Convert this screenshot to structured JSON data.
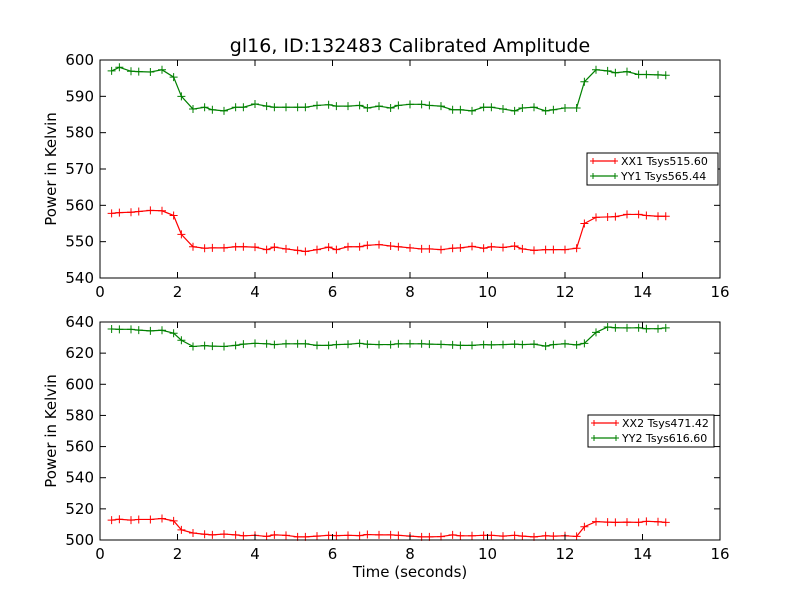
{
  "chart_data": [
    {
      "type": "line",
      "title": "gl16, ID:132483 Calibrated Amplitude",
      "xlabel": "",
      "ylabel": "Power in Kelvin",
      "xlim": [
        0,
        16
      ],
      "ylim": [
        540,
        600
      ],
      "xticks": [
        0,
        2,
        4,
        6,
        8,
        10,
        12,
        14,
        16
      ],
      "yticks": [
        540,
        550,
        560,
        570,
        580,
        590,
        600
      ],
      "legend_position": "center-right",
      "grid": false,
      "x": [
        0.3,
        0.5,
        0.8,
        1.0,
        1.3,
        1.6,
        1.9,
        2.1,
        2.4,
        2.7,
        2.9,
        3.2,
        3.5,
        3.7,
        4.0,
        4.3,
        4.5,
        4.8,
        5.1,
        5.3,
        5.6,
        5.9,
        6.1,
        6.4,
        6.7,
        6.9,
        7.2,
        7.5,
        7.7,
        8.0,
        8.3,
        8.5,
        8.8,
        9.1,
        9.3,
        9.6,
        9.9,
        10.1,
        10.4,
        10.7,
        10.9,
        11.2,
        11.5,
        11.7,
        12.0,
        12.3,
        12.5,
        12.8,
        13.1,
        13.3,
        13.6,
        13.9,
        14.1,
        14.4,
        14.6
      ],
      "series": [
        {
          "name": "XX1 Tsys515.60",
          "color": "#ff0000",
          "values": [
            557.8,
            558.0,
            558.1,
            558.3,
            558.6,
            558.5,
            557.2,
            552.0,
            548.6,
            548.2,
            548.3,
            548.3,
            548.6,
            548.6,
            548.5,
            547.8,
            548.5,
            548.0,
            547.6,
            547.3,
            547.8,
            548.5,
            547.8,
            548.6,
            548.6,
            549.0,
            549.2,
            548.8,
            548.6,
            548.3,
            548.0,
            548.0,
            547.8,
            548.2,
            548.3,
            548.7,
            548.2,
            548.6,
            548.4,
            548.8,
            548.0,
            547.6,
            547.8,
            547.8,
            547.8,
            548.2,
            555.0,
            556.7,
            556.8,
            556.9,
            557.5,
            557.5,
            557.2,
            557.0,
            557.0
          ],
          "markers": "plus"
        },
        {
          "name": "YY1 Tsys565.44",
          "color": "#008000",
          "values": [
            597.0,
            598.0,
            596.9,
            596.8,
            596.7,
            597.3,
            595.3,
            590.0,
            586.5,
            587.0,
            586.3,
            586.0,
            587.0,
            587.0,
            587.9,
            587.3,
            587.0,
            587.0,
            587.0,
            587.0,
            587.5,
            587.7,
            587.3,
            587.3,
            587.5,
            586.8,
            587.3,
            586.8,
            587.5,
            587.8,
            587.8,
            587.5,
            587.3,
            586.3,
            586.3,
            586.0,
            587.0,
            587.0,
            586.5,
            586.0,
            586.8,
            587.0,
            586.0,
            586.3,
            586.8,
            586.8,
            594.0,
            597.3,
            597.0,
            596.5,
            596.8,
            596.0,
            596.0,
            595.9,
            595.8
          ],
          "markers": "plus"
        }
      ]
    },
    {
      "type": "line",
      "title": "",
      "xlabel": "Time (seconds)",
      "ylabel": "Power in Kelvin",
      "xlim": [
        0,
        16
      ],
      "ylim": [
        500,
        640
      ],
      "xticks": [
        0,
        2,
        4,
        6,
        8,
        10,
        12,
        14,
        16
      ],
      "yticks": [
        500,
        520,
        540,
        560,
        580,
        600,
        620,
        640
      ],
      "legend_position": "center-right",
      "grid": false,
      "x": [
        0.3,
        0.5,
        0.8,
        1.0,
        1.3,
        1.6,
        1.9,
        2.1,
        2.4,
        2.7,
        2.9,
        3.2,
        3.5,
        3.7,
        4.0,
        4.3,
        4.5,
        4.8,
        5.1,
        5.3,
        5.6,
        5.9,
        6.1,
        6.4,
        6.7,
        6.9,
        7.2,
        7.5,
        7.7,
        8.0,
        8.3,
        8.5,
        8.8,
        9.1,
        9.3,
        9.6,
        9.9,
        10.1,
        10.4,
        10.7,
        10.9,
        11.2,
        11.5,
        11.7,
        12.0,
        12.3,
        12.5,
        12.8,
        13.1,
        13.3,
        13.6,
        13.9,
        14.1,
        14.4,
        14.6
      ],
      "series": [
        {
          "name": "XX2 Tsys471.42",
          "color": "#ff0000",
          "values": [
            512.8,
            513.3,
            512.8,
            513.2,
            513.2,
            513.8,
            512.3,
            506.5,
            504.5,
            503.7,
            503.3,
            503.8,
            503.3,
            502.7,
            503.0,
            502.3,
            503.3,
            503.0,
            502.0,
            502.0,
            502.5,
            503.0,
            502.8,
            503.0,
            502.8,
            503.5,
            503.3,
            503.3,
            503.0,
            502.5,
            502.0,
            502.0,
            502.2,
            503.3,
            502.7,
            502.7,
            503.0,
            503.0,
            502.5,
            503.0,
            502.5,
            502.0,
            502.7,
            502.5,
            502.7,
            502.3,
            508.5,
            511.8,
            511.5,
            511.3,
            511.5,
            511.3,
            512.0,
            511.7,
            511.3
          ],
          "markers": "plus"
        },
        {
          "name": "YY2 Tsys616.60",
          "color": "#008000",
          "values": [
            635.5,
            635.3,
            635.3,
            634.8,
            634.3,
            634.7,
            632.8,
            628.3,
            624.3,
            624.8,
            624.5,
            624.3,
            625.0,
            625.8,
            626.3,
            626.0,
            625.5,
            626.0,
            626.0,
            626.0,
            625.0,
            625.0,
            625.5,
            625.7,
            626.3,
            625.7,
            625.5,
            625.5,
            626.0,
            626.0,
            626.0,
            625.8,
            625.6,
            625.3,
            625.0,
            625.0,
            625.5,
            625.3,
            625.5,
            625.8,
            625.5,
            625.8,
            624.5,
            625.5,
            626.0,
            625.3,
            626.3,
            633.3,
            636.8,
            636.3,
            636.2,
            636.3,
            635.7,
            635.7,
            636.2
          ],
          "markers": "plus"
        }
      ]
    }
  ]
}
